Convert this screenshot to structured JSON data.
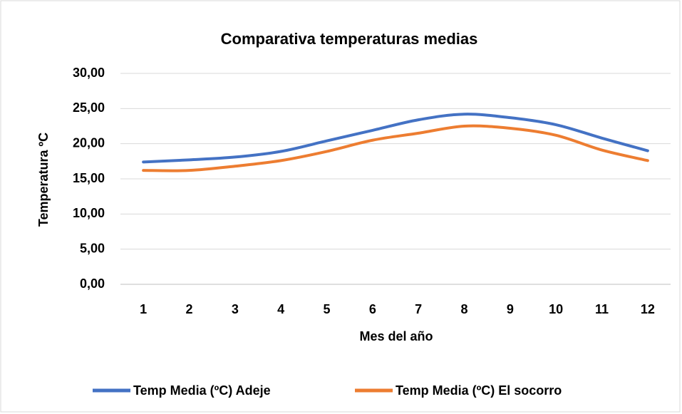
{
  "chart_data": {
    "type": "line",
    "title": "Comparativa temperaturas medias",
    "x_label": "Mes del año",
    "y_label": "Temperatura ºC",
    "categories": [
      "1",
      "2",
      "3",
      "4",
      "5",
      "6",
      "7",
      "8",
      "9",
      "10",
      "11",
      "12"
    ],
    "series": [
      {
        "name": "Temp Media (ºC) Adeje",
        "color": "#4472c4",
        "values": [
          17.4,
          17.7,
          18.1,
          18.9,
          20.4,
          21.9,
          23.4,
          24.2,
          23.7,
          22.7,
          20.8,
          19.0
        ]
      },
      {
        "name": "Temp Media (ºC) El socorro",
        "color": "#ed7d31",
        "values": [
          16.2,
          16.2,
          16.8,
          17.6,
          18.9,
          20.5,
          21.5,
          22.5,
          22.2,
          21.2,
          19.1,
          17.6
        ]
      }
    ],
    "ylim": [
      0,
      30
    ],
    "yticks": [
      {
        "value": 0,
        "label": "0,00"
      },
      {
        "value": 5,
        "label": "5,00"
      },
      {
        "value": 10,
        "label": "10,00"
      },
      {
        "value": 15,
        "label": "15,00"
      },
      {
        "value": 20,
        "label": "20,00"
      },
      {
        "value": 25,
        "label": "25,00"
      },
      {
        "value": 30,
        "label": "30,00"
      }
    ],
    "grid": true,
    "legend": "bottom"
  }
}
